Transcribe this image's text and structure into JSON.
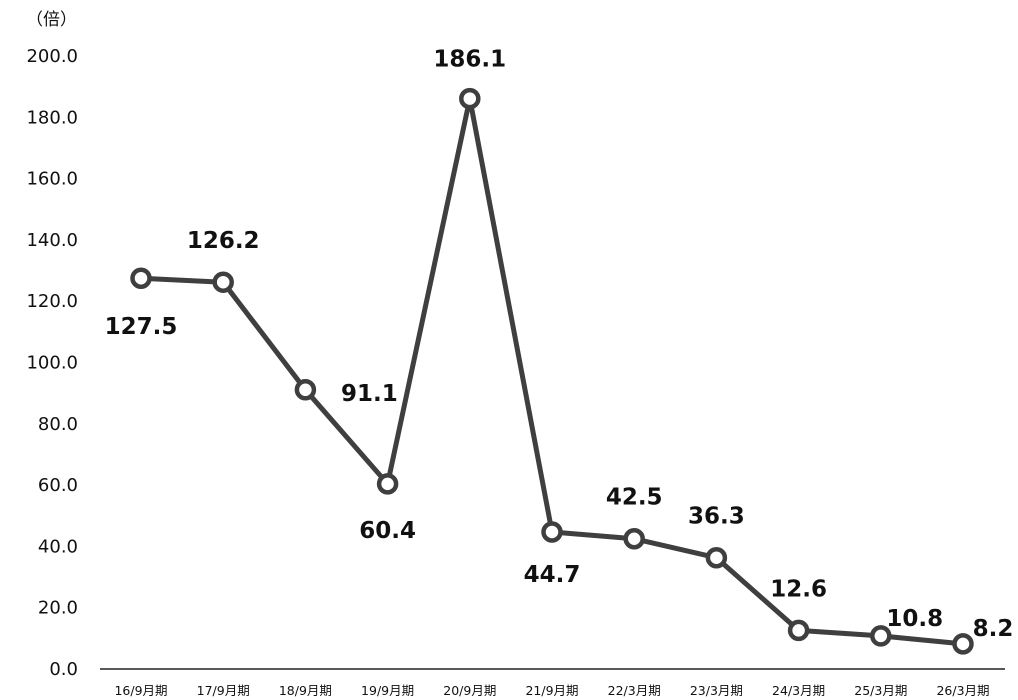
{
  "chart_data": {
    "type": "line",
    "unit_label": "（倍）",
    "categories": [
      "16/9月期",
      "17/9月期",
      "18/9月期",
      "19/9月期",
      "20/9月期",
      "21/9月期",
      "22/3月期",
      "23/3月期",
      "24/3月期",
      "25/3月期",
      "26/3月期"
    ],
    "values": [
      127.5,
      126.2,
      91.1,
      60.4,
      186.1,
      44.7,
      42.5,
      36.3,
      12.6,
      10.8,
      8.2
    ],
    "value_labels": [
      "127.5",
      "126.2",
      "91.1",
      "60.4",
      "186.1",
      "44.7",
      "42.5",
      "36.3",
      "12.6",
      "10.8",
      "8.2"
    ],
    "yticks": [
      "0.0",
      "20.0",
      "40.0",
      "60.0",
      "80.0",
      "100.0",
      "120.0",
      "140.0",
      "160.0",
      "180.0",
      "200.0"
    ],
    "ylim": [
      0,
      200
    ],
    "grid": false,
    "line_color": "#3f3f3f",
    "marker_fill": "#ffffff"
  }
}
